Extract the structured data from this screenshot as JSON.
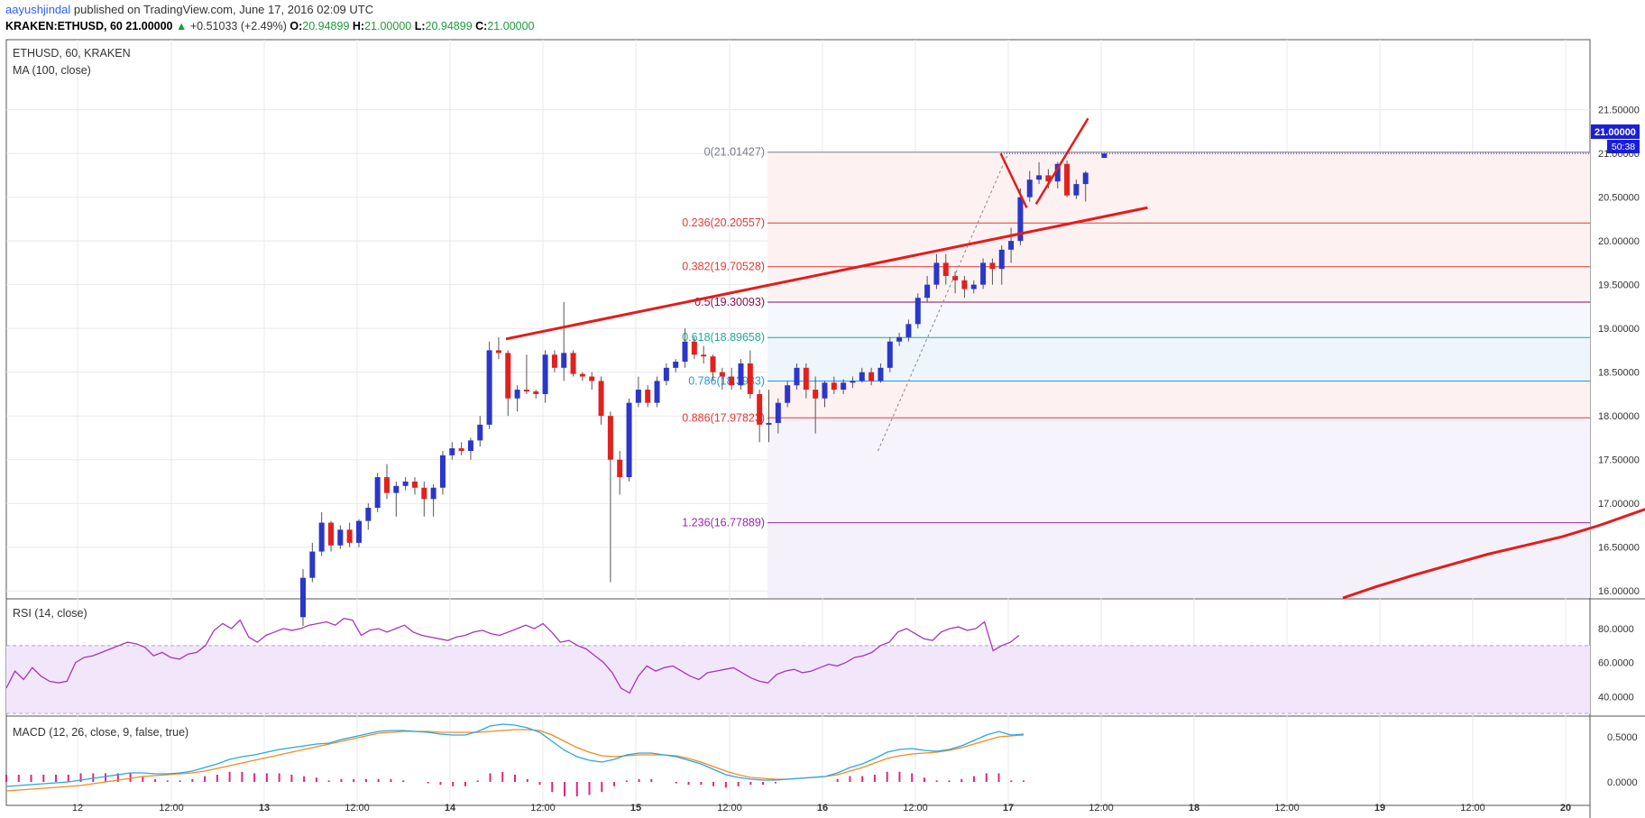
{
  "header": {
    "author": "aayushjindal",
    "published": "published on TradingView.com, June 17, 2016 02:09 UTC",
    "symbol": "KRAKEN:ETHUSD, 60",
    "last": "21.00000",
    "change_arrow": "▲",
    "change": "+0.51033 (+2.49%)",
    "o_label": "O:",
    "o": "20.94899",
    "h_label": "H:",
    "h": "21.00000",
    "l_label": "L:",
    "l": "20.94899",
    "c_label": "C:",
    "c": "21.00000"
  },
  "legend": {
    "title": "ETHUSD, 60, KRAKEN",
    "ma": "MA (100, close)",
    "rsi": "RSI (14, close)",
    "macd": "MACD (12, 26, close, 9, false, true)"
  },
  "price_label": {
    "value": "21.00000",
    "countdown": "50:38"
  },
  "chart_data": {
    "type": "candlestick",
    "main": {
      "y_ticks": [
        "21.50000",
        "21.00000",
        "20.50000",
        "20.00000",
        "19.50000",
        "19.00000",
        "18.50000",
        "18.00000",
        "17.50000",
        "17.00000",
        "16.50000",
        "16.00000"
      ],
      "ylim": [
        15.92,
        22.3
      ],
      "fibonacci": [
        {
          "label": "0(21.01427)",
          "value": 21.01427,
          "color": "#787b86"
        },
        {
          "label": "0.236(20.20557)",
          "value": 20.20557,
          "color": "#e53935"
        },
        {
          "label": "0.382(19.70528)",
          "value": 19.70528,
          "color": "#e53935"
        },
        {
          "label": "0.5(19.30093)",
          "value": 19.30093,
          "color": "#880e4f"
        },
        {
          "label": "0.618(18.89658)",
          "value": 18.89658,
          "color": "#26a69a"
        },
        {
          "label": "0.786(18.3983)",
          "value": 18.3983,
          "color": "#2196f3"
        },
        {
          "label": "0.886(17.97823)",
          "value": 17.97823,
          "color": "#e53935"
        },
        {
          "label": "1.236(16.77889)",
          "value": 16.77889,
          "color": "#9c27b0"
        }
      ],
      "candles": [
        {
          "o": 15.7,
          "h": 16.25,
          "l": 15.6,
          "c": 16.15
        },
        {
          "o": 16.15,
          "h": 16.55,
          "l": 16.1,
          "c": 16.45
        },
        {
          "o": 16.45,
          "h": 16.9,
          "l": 16.4,
          "c": 16.78
        },
        {
          "o": 16.78,
          "h": 16.8,
          "l": 16.45,
          "c": 16.52
        },
        {
          "o": 16.52,
          "h": 16.75,
          "l": 16.48,
          "c": 16.7
        },
        {
          "o": 16.7,
          "h": 16.78,
          "l": 16.5,
          "c": 16.55
        },
        {
          "o": 16.55,
          "h": 16.82,
          "l": 16.5,
          "c": 16.8
        },
        {
          "o": 16.8,
          "h": 17.0,
          "l": 16.7,
          "c": 16.95
        },
        {
          "o": 16.95,
          "h": 17.35,
          "l": 16.9,
          "c": 17.3
        },
        {
          "o": 17.3,
          "h": 17.45,
          "l": 17.05,
          "c": 17.12
        },
        {
          "o": 17.12,
          "h": 17.25,
          "l": 16.85,
          "c": 17.2
        },
        {
          "o": 17.2,
          "h": 17.3,
          "l": 17.15,
          "c": 17.25
        },
        {
          "o": 17.25,
          "h": 17.3,
          "l": 17.1,
          "c": 17.18
        },
        {
          "o": 17.18,
          "h": 17.25,
          "l": 16.85,
          "c": 17.05
        },
        {
          "o": 17.05,
          "h": 17.22,
          "l": 16.85,
          "c": 17.18
        },
        {
          "o": 17.18,
          "h": 17.6,
          "l": 17.1,
          "c": 17.55
        },
        {
          "o": 17.55,
          "h": 17.7,
          "l": 17.5,
          "c": 17.63
        },
        {
          "o": 17.63,
          "h": 17.7,
          "l": 17.55,
          "c": 17.6
        },
        {
          "o": 17.6,
          "h": 17.75,
          "l": 17.5,
          "c": 17.72
        },
        {
          "o": 17.72,
          "h": 18.0,
          "l": 17.65,
          "c": 17.9
        },
        {
          "o": 17.9,
          "h": 18.85,
          "l": 17.85,
          "c": 18.75
        },
        {
          "o": 18.75,
          "h": 18.9,
          "l": 18.65,
          "c": 18.72
        },
        {
          "o": 18.72,
          "h": 18.75,
          "l": 18.0,
          "c": 18.2
        },
        {
          "o": 18.2,
          "h": 18.35,
          "l": 18.05,
          "c": 18.3
        },
        {
          "o": 18.3,
          "h": 18.7,
          "l": 18.25,
          "c": 18.28
        },
        {
          "o": 18.28,
          "h": 18.3,
          "l": 18.2,
          "c": 18.25
        },
        {
          "o": 18.25,
          "h": 18.75,
          "l": 18.15,
          "c": 18.7
        },
        {
          "o": 18.7,
          "h": 18.75,
          "l": 18.5,
          "c": 18.55
        },
        {
          "o": 18.55,
          "h": 19.3,
          "l": 18.4,
          "c": 18.72
        },
        {
          "o": 18.72,
          "h": 18.75,
          "l": 18.45,
          "c": 18.48
        },
        {
          "o": 18.48,
          "h": 18.5,
          "l": 18.4,
          "c": 18.45
        },
        {
          "o": 18.45,
          "h": 18.5,
          "l": 18.3,
          "c": 18.4
        },
        {
          "o": 18.4,
          "h": 18.45,
          "l": 17.9,
          "c": 18.0
        },
        {
          "o": 18.0,
          "h": 18.05,
          "l": 16.1,
          "c": 17.5
        },
        {
          "o": 17.5,
          "h": 17.6,
          "l": 17.1,
          "c": 17.3
        },
        {
          "o": 17.3,
          "h": 18.2,
          "l": 17.25,
          "c": 18.15
        },
        {
          "o": 18.15,
          "h": 18.45,
          "l": 18.1,
          "c": 18.3
        },
        {
          "o": 18.3,
          "h": 18.35,
          "l": 18.1,
          "c": 18.15
        },
        {
          "o": 18.15,
          "h": 18.45,
          "l": 18.1,
          "c": 18.4
        },
        {
          "o": 18.4,
          "h": 18.6,
          "l": 18.35,
          "c": 18.55
        },
        {
          "o": 18.55,
          "h": 18.65,
          "l": 18.5,
          "c": 18.62
        },
        {
          "o": 18.62,
          "h": 19.0,
          "l": 18.55,
          "c": 18.85
        },
        {
          "o": 18.85,
          "h": 18.9,
          "l": 18.65,
          "c": 18.7
        },
        {
          "o": 18.7,
          "h": 18.8,
          "l": 18.6,
          "c": 18.68
        },
        {
          "o": 18.68,
          "h": 18.7,
          "l": 18.4,
          "c": 18.5
        },
        {
          "o": 18.5,
          "h": 18.55,
          "l": 18.3,
          "c": 18.45
        },
        {
          "o": 18.45,
          "h": 18.55,
          "l": 18.3,
          "c": 18.35
        },
        {
          "o": 18.35,
          "h": 18.65,
          "l": 18.3,
          "c": 18.6
        },
        {
          "o": 18.6,
          "h": 18.75,
          "l": 18.2,
          "c": 18.25
        },
        {
          "o": 18.25,
          "h": 18.3,
          "l": 17.7,
          "c": 17.9
        },
        {
          "o": 17.9,
          "h": 18.3,
          "l": 17.7,
          "c": 17.92
        },
        {
          "o": 17.92,
          "h": 18.2,
          "l": 17.8,
          "c": 18.15
        },
        {
          "o": 18.15,
          "h": 18.4,
          "l": 18.1,
          "c": 18.35
        },
        {
          "o": 18.35,
          "h": 18.6,
          "l": 18.3,
          "c": 18.55
        },
        {
          "o": 18.55,
          "h": 18.6,
          "l": 18.2,
          "c": 18.3
        },
        {
          "o": 18.3,
          "h": 18.45,
          "l": 17.8,
          "c": 18.2
        },
        {
          "o": 18.2,
          "h": 18.4,
          "l": 18.1,
          "c": 18.38
        },
        {
          "o": 18.38,
          "h": 18.45,
          "l": 18.25,
          "c": 18.3
        },
        {
          "o": 18.3,
          "h": 18.42,
          "l": 18.25,
          "c": 18.38
        },
        {
          "o": 18.38,
          "h": 18.45,
          "l": 18.32,
          "c": 18.4
        },
        {
          "o": 18.4,
          "h": 18.55,
          "l": 18.38,
          "c": 18.5
        },
        {
          "o": 18.5,
          "h": 18.55,
          "l": 18.35,
          "c": 18.4
        },
        {
          "o": 18.4,
          "h": 18.6,
          "l": 18.38,
          "c": 18.55
        },
        {
          "o": 18.55,
          "h": 18.9,
          "l": 18.5,
          "c": 18.85
        },
        {
          "o": 18.85,
          "h": 18.95,
          "l": 18.8,
          "c": 18.9
        },
        {
          "o": 18.9,
          "h": 19.1,
          "l": 18.85,
          "c": 19.05
        },
        {
          "o": 19.05,
          "h": 19.4,
          "l": 19.0,
          "c": 19.35
        },
        {
          "o": 19.35,
          "h": 19.6,
          "l": 19.3,
          "c": 19.5
        },
        {
          "o": 19.5,
          "h": 19.85,
          "l": 19.45,
          "c": 19.75
        },
        {
          "o": 19.75,
          "h": 19.85,
          "l": 19.5,
          "c": 19.6
        },
        {
          "o": 19.6,
          "h": 19.65,
          "l": 19.4,
          "c": 19.55
        },
        {
          "o": 19.55,
          "h": 19.6,
          "l": 19.35,
          "c": 19.45
        },
        {
          "o": 19.45,
          "h": 19.55,
          "l": 19.4,
          "c": 19.5
        },
        {
          "o": 19.5,
          "h": 19.8,
          "l": 19.45,
          "c": 19.75
        },
        {
          "o": 19.75,
          "h": 19.8,
          "l": 19.5,
          "c": 19.68
        },
        {
          "o": 19.68,
          "h": 19.95,
          "l": 19.5,
          "c": 19.9
        },
        {
          "o": 19.9,
          "h": 20.15,
          "l": 19.75,
          "c": 20.0
        },
        {
          "o": 20.0,
          "h": 20.6,
          "l": 19.95,
          "c": 20.5
        },
        {
          "o": 20.5,
          "h": 20.8,
          "l": 20.45,
          "c": 20.7
        },
        {
          "o": 20.7,
          "h": 20.9,
          "l": 20.65,
          "c": 20.75
        },
        {
          "o": 20.75,
          "h": 20.82,
          "l": 20.6,
          "c": 20.68
        },
        {
          "o": 20.68,
          "h": 20.9,
          "l": 20.6,
          "c": 20.88
        },
        {
          "o": 20.88,
          "h": 20.92,
          "l": 20.5,
          "c": 20.52
        },
        {
          "o": 20.52,
          "h": 20.7,
          "l": 20.48,
          "c": 20.65
        },
        {
          "o": 20.65,
          "h": 20.8,
          "l": 20.45,
          "c": 20.78
        },
        null,
        {
          "o": 20.94899,
          "h": 21.0,
          "l": 20.94899,
          "c": 21.0
        }
      ],
      "ma": [
        [
          18.8,
          15.92
        ],
        [
          18.98,
          16.05
        ],
        [
          19.18,
          16.18
        ],
        [
          19.38,
          16.3
        ],
        [
          19.58,
          16.42
        ],
        [
          19.78,
          16.52
        ],
        [
          19.98,
          16.62
        ],
        [
          20.18,
          16.75
        ],
        [
          20.38,
          16.9
        ],
        [
          20.58,
          17.05
        ],
        [
          20.78,
          17.22
        ],
        [
          20.98,
          17.4
        ],
        [
          21.18,
          17.58
        ],
        [
          21.38,
          17.75
        ],
        [
          21.58,
          17.92
        ],
        [
          21.78,
          18.1
        ],
        [
          21.96,
          18.3
        ]
      ],
      "trendline_upper": [
        [
          14.3,
          18.88
        ],
        [
          17.75,
          20.38
        ]
      ],
      "trendline_lower_dashed": [
        [
          16.3,
          17.6
        ],
        [
          17.0,
          21.0
        ]
      ],
      "projection": [
        [
          16.96,
          21.0
        ],
        [
          17.1,
          20.38
        ],
        [
          17.15,
          20.42
        ],
        [
          17.43,
          21.4
        ]
      ]
    },
    "rsi": {
      "y_ticks": [
        "80.0000",
        "60.0000",
        "40.0000"
      ],
      "ylim": [
        29,
        97
      ],
      "band": [
        30,
        70
      ],
      "values": [
        45,
        55,
        50,
        57,
        52,
        49,
        48,
        49,
        60,
        63,
        64,
        66,
        68,
        70,
        72,
        71,
        69,
        64,
        66,
        63,
        62,
        65,
        66,
        70,
        79,
        83,
        80,
        85,
        75,
        72,
        76,
        78,
        80,
        79,
        80,
        82,
        83,
        84,
        82,
        86,
        85,
        76,
        79,
        80,
        78,
        80,
        82,
        78,
        76,
        75,
        74,
        73,
        75,
        76,
        78,
        79,
        77,
        76,
        78,
        80,
        82,
        80,
        83,
        78,
        72,
        73,
        70,
        68,
        64,
        60,
        54,
        45,
        42,
        52,
        58,
        55,
        57,
        58,
        55,
        52,
        50,
        54,
        55,
        56,
        57,
        54,
        51,
        49,
        48,
        53,
        55,
        56,
        54,
        55,
        57,
        59,
        58,
        60,
        63,
        64,
        66,
        70,
        72,
        78,
        80,
        77,
        74,
        73,
        78,
        80,
        81,
        79,
        80,
        84,
        67,
        70,
        72,
        76
      ],
      "x_start": 0,
      "x_end": 974
    },
    "macd": {
      "y_ticks": [
        "0.5000",
        "0.0000"
      ],
      "ylim": [
        -0.26,
        0.72
      ],
      "macd_line": [
        -0.05,
        -0.04,
        -0.03,
        -0.02,
        -0.01,
        0.0,
        0.02,
        0.04,
        0.06,
        0.08,
        0.1,
        0.1,
        0.09,
        0.09,
        0.1,
        0.12,
        0.16,
        0.2,
        0.25,
        0.28,
        0.3,
        0.33,
        0.36,
        0.38,
        0.4,
        0.42,
        0.43,
        0.47,
        0.5,
        0.53,
        0.56,
        0.57,
        0.57,
        0.56,
        0.55,
        0.53,
        0.52,
        0.52,
        0.56,
        0.62,
        0.64,
        0.63,
        0.6,
        0.55,
        0.45,
        0.35,
        0.28,
        0.24,
        0.22,
        0.25,
        0.3,
        0.32,
        0.32,
        0.3,
        0.28,
        0.24,
        0.2,
        0.14,
        0.08,
        0.05,
        0.03,
        0.02,
        0.02,
        0.03,
        0.04,
        0.05,
        0.06,
        0.1,
        0.16,
        0.2,
        0.26,
        0.33,
        0.36,
        0.37,
        0.35,
        0.34,
        0.36,
        0.4,
        0.46,
        0.52,
        0.56,
        0.52,
        0.53
      ],
      "signal_line": [
        -0.1,
        -0.09,
        -0.08,
        -0.07,
        -0.06,
        -0.05,
        -0.04,
        -0.02,
        0.0,
        0.02,
        0.04,
        0.06,
        0.07,
        0.08,
        0.09,
        0.1,
        0.12,
        0.15,
        0.18,
        0.21,
        0.24,
        0.27,
        0.3,
        0.33,
        0.36,
        0.39,
        0.42,
        0.45,
        0.48,
        0.51,
        0.54,
        0.55,
        0.56,
        0.56,
        0.56,
        0.55,
        0.55,
        0.55,
        0.55,
        0.56,
        0.57,
        0.58,
        0.58,
        0.57,
        0.52,
        0.45,
        0.38,
        0.33,
        0.29,
        0.28,
        0.29,
        0.3,
        0.3,
        0.3,
        0.29,
        0.26,
        0.22,
        0.17,
        0.12,
        0.08,
        0.05,
        0.04,
        0.03,
        0.03,
        0.04,
        0.05,
        0.06,
        0.08,
        0.12,
        0.16,
        0.21,
        0.26,
        0.29,
        0.31,
        0.32,
        0.33,
        0.35,
        0.38,
        0.42,
        0.46,
        0.5,
        0.51,
        0.52
      ],
      "x_start": 0,
      "x_end": 974
    },
    "x_ticks": [
      {
        "label": "12",
        "bold": false,
        "px": 86
      },
      {
        "label": "12:00",
        "bold": false,
        "px": 190
      },
      {
        "label": "13",
        "bold": true,
        "px": 293
      },
      {
        "label": "12:00",
        "bold": false,
        "px": 396
      },
      {
        "label": "14",
        "bold": true,
        "px": 499
      },
      {
        "label": "12:00",
        "bold": false,
        "px": 602
      },
      {
        "label": "15",
        "bold": true,
        "px": 705
      },
      {
        "label": "12:00",
        "bold": false,
        "px": 809
      },
      {
        "label": "16",
        "bold": true,
        "px": 912
      },
      {
        "label": "12:00",
        "bold": false,
        "px": 1015
      },
      {
        "label": "17",
        "bold": true,
        "px": 1118
      },
      {
        "label": "12:00",
        "bold": false,
        "px": 1221
      },
      {
        "label": "18",
        "bold": true,
        "px": 1324
      },
      {
        "label": "12:00",
        "bold": false,
        "px": 1427
      },
      {
        "label": "19",
        "bold": true,
        "px": 1530
      },
      {
        "label": "12:00",
        "bold": false,
        "px": 1633
      },
      {
        "label": "20",
        "bold": true,
        "px": 1736
      }
    ]
  },
  "colors": {
    "up": "#2a37c8",
    "down": "#e1211d",
    "ma": "#e51b1b",
    "trend": "#e51b1b",
    "rsi_line": "#a536b8",
    "rsi_band": "#f2e6fb",
    "macd": "#2aa6e6",
    "signal": "#f28a24",
    "hist": "#e0247e",
    "price_tag": "#1a1fd6"
  }
}
